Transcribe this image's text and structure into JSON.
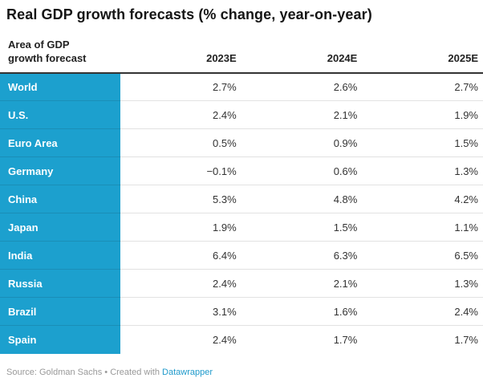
{
  "title": "Real GDP growth forecasts (% change, year-on-year)",
  "table": {
    "header": {
      "area_label": "Area of GDP\ngrowth forecast",
      "columns": [
        "2023E",
        "2024E",
        "2025E"
      ]
    },
    "rows": [
      {
        "label": "World",
        "values": [
          "2.7%",
          "2.6%",
          "2.7%"
        ]
      },
      {
        "label": "U.S.",
        "values": [
          "2.4%",
          "2.1%",
          "1.9%"
        ]
      },
      {
        "label": "Euro Area",
        "values": [
          "0.5%",
          "0.9%",
          "1.5%"
        ]
      },
      {
        "label": "Germany",
        "values": [
          "−0.1%",
          "0.6%",
          "1.3%"
        ]
      },
      {
        "label": "China",
        "values": [
          "5.3%",
          "4.8%",
          "4.2%"
        ]
      },
      {
        "label": "Japan",
        "values": [
          "1.9%",
          "1.5%",
          "1.1%"
        ]
      },
      {
        "label": "India",
        "values": [
          "6.4%",
          "6.3%",
          "6.5%"
        ]
      },
      {
        "label": "Russia",
        "values": [
          "2.4%",
          "2.1%",
          "1.3%"
        ]
      },
      {
        "label": "Brazil",
        "values": [
          "3.1%",
          "1.6%",
          "2.4%"
        ]
      },
      {
        "label": "Spain",
        "values": [
          "2.4%",
          "1.7%",
          "1.7%"
        ]
      }
    ]
  },
  "footer": {
    "source_text": "Source: Goldman Sachs",
    "separator": " • ",
    "created_text": "Created with ",
    "link_label": "Datawrapper"
  },
  "colors": {
    "row_label_bg": "#1ca0ce",
    "link": "#1f9acb",
    "header_rule": "#333333"
  },
  "chart_data": {
    "type": "table",
    "title": "Real GDP growth forecasts (% change, year-on-year)",
    "row_header": "Area of GDP growth forecast",
    "columns": [
      "2023E",
      "2024E",
      "2025E"
    ],
    "categories": [
      "World",
      "U.S.",
      "Euro Area",
      "Germany",
      "China",
      "Japan",
      "India",
      "Russia",
      "Brazil",
      "Spain"
    ],
    "series": [
      {
        "name": "2023E",
        "values": [
          2.7,
          2.4,
          0.5,
          -0.1,
          5.3,
          1.9,
          6.4,
          2.4,
          3.1,
          2.4
        ]
      },
      {
        "name": "2024E",
        "values": [
          2.6,
          2.1,
          0.9,
          0.6,
          4.8,
          1.5,
          6.3,
          2.1,
          1.6,
          1.7
        ]
      },
      {
        "name": "2025E",
        "values": [
          2.7,
          1.9,
          1.5,
          1.3,
          4.2,
          1.1,
          6.5,
          1.3,
          2.4,
          1.7
        ]
      }
    ],
    "unit": "%",
    "source": "Goldman Sachs"
  }
}
